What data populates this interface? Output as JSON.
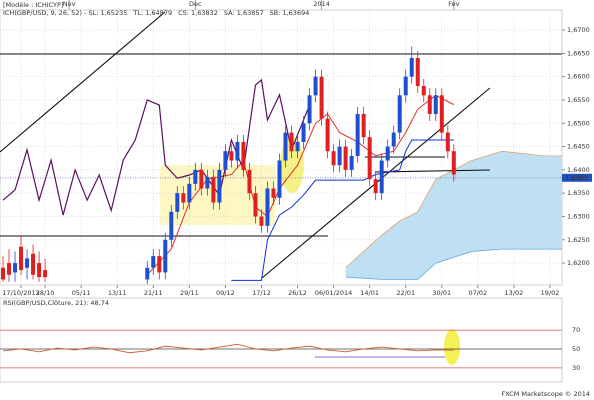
{
  "chart_data": {
    "type": "candlestick",
    "model": "[Modèle : ICHICYP]",
    "legend": [
      {
        "text": "ICH(GBP/USD, 9, 26, 52) - SL: 1,65235",
        "color": "#d02020"
      },
      {
        "text": "TL: 1,64879",
        "color": "#d02020"
      },
      {
        "text": "CS: 1,63832",
        "color": "#3050c0"
      },
      {
        "text": "SA: 1,63857",
        "color": "#e08030"
      },
      {
        "text": "SB: 1,63694",
        "color": "#3090d0"
      }
    ],
    "up_color": "#1e4fd0",
    "down_color": "#e02020",
    "x": [
      0,
      1,
      2,
      3,
      4,
      5,
      6,
      7,
      24,
      25,
      26,
      27,
      28,
      29,
      30,
      31,
      32,
      33,
      34,
      35,
      36,
      37,
      38,
      39,
      40,
      41,
      42,
      43,
      44,
      45,
      46,
      47,
      48,
      49,
      50,
      51,
      52,
      53,
      54,
      55,
      56,
      57,
      58,
      59,
      60,
      61,
      62,
      63,
      64,
      65,
      66,
      67,
      68,
      69,
      70,
      71,
      72,
      73,
      74,
      75
    ],
    "open": [
      1.619,
      1.62,
      1.618,
      1.6235,
      1.619,
      1.622,
      1.62,
      1.6185,
      1.6165,
      1.619,
      1.6215,
      1.618,
      1.625,
      1.631,
      1.635,
      1.633,
      1.637,
      1.64,
      1.636,
      1.6385,
      1.633,
      1.64,
      1.644,
      1.642,
      1.646,
      1.64,
      1.635,
      1.63,
      1.628,
      1.636,
      1.634,
      1.642,
      1.648,
      1.644,
      1.646,
      1.65,
      1.656,
      1.66,
      1.651,
      1.644,
      1.641,
      1.645,
      1.64,
      1.643,
      1.652,
      1.647,
      1.638,
      1.635,
      1.642,
      1.645,
      1.648,
      1.656,
      1.66,
      1.664,
      1.658,
      1.656,
      1.652,
      1.656,
      1.648,
      1.644
    ],
    "high": [
      1.6215,
      1.623,
      1.6225,
      1.626,
      1.623,
      1.624,
      1.6225,
      1.621,
      1.6205,
      1.623,
      1.623,
      1.6265,
      1.6325,
      1.6365,
      1.6365,
      1.6385,
      1.6415,
      1.6415,
      1.64,
      1.64,
      1.6415,
      1.6455,
      1.6455,
      1.6475,
      1.6475,
      1.6415,
      1.6365,
      1.6315,
      1.6375,
      1.6375,
      1.6435,
      1.6495,
      1.6495,
      1.6475,
      1.6515,
      1.6575,
      1.6615,
      1.6615,
      1.6525,
      1.6455,
      1.6465,
      1.6465,
      1.6445,
      1.6535,
      1.6535,
      1.6485,
      1.6395,
      1.6435,
      1.6465,
      1.6495,
      1.6575,
      1.6615,
      1.6665,
      1.6655,
      1.6595,
      1.6575,
      1.6575,
      1.6575,
      1.6495,
      1.6455
    ],
    "low": [
      1.616,
      1.616,
      1.616,
      1.6175,
      1.6165,
      1.6165,
      1.616,
      1.616,
      1.6155,
      1.6175,
      1.6165,
      1.6165,
      1.6235,
      1.6295,
      1.6315,
      1.6315,
      1.6355,
      1.6345,
      1.6345,
      1.6315,
      1.6315,
      1.6385,
      1.6405,
      1.6405,
      1.6385,
      1.6335,
      1.6285,
      1.6265,
      1.6265,
      1.6325,
      1.6325,
      1.6405,
      1.6425,
      1.6425,
      1.6445,
      1.6485,
      1.6545,
      1.6495,
      1.6425,
      1.6395,
      1.6395,
      1.6385,
      1.6385,
      1.6415,
      1.6455,
      1.6365,
      1.6335,
      1.6335,
      1.6405,
      1.6435,
      1.6465,
      1.6545,
      1.6585,
      1.6565,
      1.6545,
      1.6505,
      1.6505,
      1.6465,
      1.6425,
      1.6375
    ],
    "close": [
      1.6165,
      1.6175,
      1.62,
      1.6185,
      1.621,
      1.6175,
      1.617,
      1.617,
      1.619,
      1.6215,
      1.618,
      1.625,
      1.631,
      1.635,
      1.633,
      1.637,
      1.64,
      1.636,
      1.6385,
      1.633,
      1.64,
      1.644,
      1.642,
      1.646,
      1.64,
      1.635,
      1.63,
      1.628,
      1.636,
      1.634,
      1.642,
      1.648,
      1.644,
      1.646,
      1.65,
      1.656,
      1.66,
      1.651,
      1.644,
      1.641,
      1.645,
      1.64,
      1.643,
      1.652,
      1.647,
      1.638,
      1.635,
      1.642,
      1.645,
      1.648,
      1.656,
      1.66,
      1.664,
      1.658,
      1.656,
      1.652,
      1.656,
      1.648,
      1.644,
      1.639
    ],
    "lines": [
      {
        "name": "TL",
        "color": "#e03030",
        "x": [
          24,
          28,
          31,
          34,
          38,
          40,
          42,
          44,
          46,
          49,
          52,
          54,
          56,
          59,
          62,
          65,
          67,
          69,
          72,
          75
        ],
        "values": [
          1.6175,
          1.623,
          1.633,
          1.638,
          1.639,
          1.642,
          1.632,
          1.63,
          1.636,
          1.641,
          1.65,
          1.652,
          1.648,
          1.646,
          1.643,
          1.644,
          1.648,
          1.653,
          1.656,
          1.654
        ]
      },
      {
        "name": "SL",
        "color": "#1030e0",
        "x": [
          38,
          43,
          44,
          46,
          48,
          50,
          52,
          60,
          62,
          66,
          67,
          68,
          75
        ],
        "values": [
          1.6163,
          1.6163,
          1.625,
          1.6303,
          1.632,
          1.6346,
          1.6378,
          1.6378,
          1.639,
          1.64,
          1.644,
          1.6464,
          1.6464
        ]
      },
      {
        "name": "CS",
        "color": "#5a1060",
        "x": [
          0,
          2,
          4,
          6,
          7,
          8,
          10,
          12,
          14,
          16,
          18,
          20,
          22,
          24,
          26,
          27,
          29,
          31,
          33,
          36,
          38,
          40,
          42,
          43,
          44,
          46,
          48,
          50,
          51
        ],
        "values": [
          1.6335,
          1.6357,
          1.6443,
          1.6335,
          1.6378,
          1.6421,
          1.6303,
          1.64,
          1.6335,
          1.6389,
          1.6313,
          1.6421,
          1.6464,
          1.655,
          1.6539,
          1.641,
          1.6382,
          1.6389,
          1.64,
          1.6346,
          1.6464,
          1.64,
          1.6582,
          1.6593,
          1.6507,
          1.6561,
          1.6443,
          1.6507,
          1.6539
        ]
      }
    ],
    "cloud": {
      "color": "#bfe0f2",
      "x": [
        57,
        63,
        66,
        69,
        72,
        78,
        83,
        90,
        93
      ],
      "top": [
        1.619,
        1.626,
        1.629,
        1.631,
        1.638,
        1.642,
        1.644,
        1.643,
        1.643
      ],
      "bottom": [
        1.617,
        1.6165,
        1.6165,
        1.6165,
        1.62,
        1.6225,
        1.623,
        1.623,
        1.623
      ]
    },
    "xlim": [
      -0.5,
      93
    ],
    "ylim": [
      1.6153,
      1.6743
    ],
    "yticks": [
      {
        "value": 1.62,
        "label": "1,6200"
      },
      {
        "value": 1.625,
        "label": "1,6250"
      },
      {
        "value": 1.63,
        "label": "1,6300"
      },
      {
        "value": 1.635,
        "label": "1,6350"
      },
      {
        "value": 1.64,
        "label": "1,6400"
      },
      {
        "value": 1.645,
        "label": "1,6450"
      },
      {
        "value": 1.65,
        "label": "1,6500"
      },
      {
        "value": 1.655,
        "label": "1,6550"
      },
      {
        "value": 1.66,
        "label": "1,6600"
      },
      {
        "value": 1.665,
        "label": "1,6650"
      },
      {
        "value": 1.67,
        "label": "1,6700"
      }
    ],
    "last_price": {
      "value": 1.6383,
      "label": "1,6383"
    },
    "xticks": [
      {
        "value": 3,
        "label": "17/10/2013"
      },
      {
        "value": 7,
        "label": "28/10"
      },
      {
        "value": 13,
        "label": "05/11"
      },
      {
        "value": 19,
        "label": "13/11"
      },
      {
        "value": 25,
        "label": "21/11"
      },
      {
        "value": 31,
        "label": "29/11"
      },
      {
        "value": 37,
        "label": "09/12"
      },
      {
        "value": 43,
        "label": "17/12"
      },
      {
        "value": 49,
        "label": "26/12"
      },
      {
        "value": 55,
        "label": "06/01/2014"
      },
      {
        "value": 61,
        "label": "14/01"
      },
      {
        "value": 67,
        "label": "22/01"
      },
      {
        "value": 73,
        "label": "30/01"
      },
      {
        "value": 79,
        "label": "07/02"
      },
      {
        "value": 85,
        "label": "13/02"
      },
      {
        "value": 91,
        "label": "19/02"
      }
    ],
    "month_ticks": [
      {
        "value": 11,
        "label": "Nov"
      },
      {
        "value": 32,
        "label": "Dec"
      },
      {
        "value": 53,
        "label": "2014"
      },
      {
        "value": 75,
        "label": "Fev"
      }
    ],
    "grid": true,
    "rsi": {
      "title": "RSI(GBP/USD,Clôture, 21): 48,74",
      "color": "#d06030",
      "x": [
        0,
        3,
        6,
        9,
        12,
        15,
        18,
        21,
        24,
        27,
        30,
        33,
        36,
        39,
        42,
        45,
        48,
        51,
        54,
        57,
        60,
        63,
        66,
        69,
        72,
        75
      ],
      "values": [
        48,
        50,
        47,
        51,
        49,
        52,
        50,
        46,
        48,
        53,
        51,
        49,
        52,
        55,
        50,
        48,
        51,
        53,
        49,
        47,
        50,
        52,
        50,
        48,
        49,
        48.74
      ],
      "ylim": [
        15,
        104
      ],
      "yticks": [
        30,
        50,
        70
      ]
    },
    "footer": "FXCM Marketscope © 2014"
  }
}
